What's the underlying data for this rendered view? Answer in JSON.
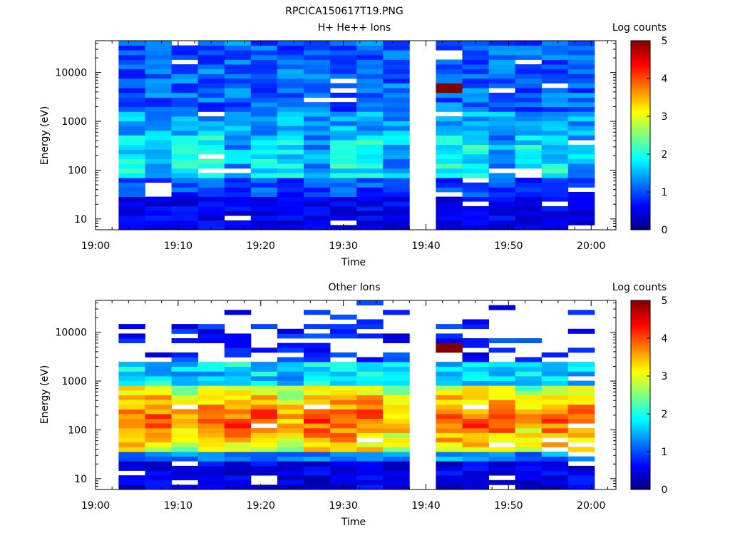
{
  "page_title": "RPCICA150617T19.PNG",
  "chart_data": [
    {
      "type": "heatmap",
      "title": "H+ He++ Ions",
      "xlabel": "Time",
      "ylabel": "Energy (eV)",
      "colorbar_label": "Log counts",
      "colorbar_ticks": [
        "0",
        "1",
        "2",
        "3",
        "4",
        "5"
      ],
      "colorbar_range": [
        0,
        5
      ],
      "colormap": "rainbow-jet",
      "x_range_min": [
        0,
        63
      ],
      "x_ticks": [
        {
          "min": 0,
          "label": "19:00"
        },
        {
          "min": 10,
          "label": "19:10"
        },
        {
          "min": 20,
          "label": "19:20"
        },
        {
          "min": 30,
          "label": "19:30"
        },
        {
          "min": 40,
          "label": "19:40"
        },
        {
          "min": 50,
          "label": "19:50"
        },
        {
          "min": 60,
          "label": "20:00"
        }
      ],
      "y_scale": "log",
      "y_range": [
        6,
        45000
      ],
      "y_ticks": [
        {
          "value": 10,
          "label": "10"
        },
        {
          "value": 100,
          "label": "100"
        },
        {
          "value": 1000,
          "label": "1000"
        },
        {
          "value": 10000,
          "label": "10000"
        }
      ],
      "time_bins_min": [
        [
          2.8,
          6.0
        ],
        [
          6.0,
          9.2
        ],
        [
          9.2,
          12.4
        ],
        [
          12.4,
          15.6
        ],
        [
          15.6,
          18.8
        ],
        [
          18.8,
          22.0
        ],
        [
          22.0,
          25.2
        ],
        [
          25.2,
          28.4
        ],
        [
          28.4,
          31.6
        ],
        [
          31.6,
          34.8
        ],
        [
          34.8,
          38.0
        ],
        [
          41.2,
          44.4
        ],
        [
          44.4,
          47.6
        ],
        [
          47.6,
          50.8
        ],
        [
          50.8,
          54.0
        ],
        [
          54.0,
          57.2
        ],
        [
          57.2,
          60.4
        ]
      ],
      "energy_range_eV": [
        6,
        45000
      ],
      "energy_bin_count": 40,
      "features": "Mostly 0.7-1.5 log counts above 1 keV; enhanced 2-2.5 near 100-400 eV; low <0.5 below 30 eV; isolated saturated (5) cell near 19:43 at ~5 keV; data gap 19:38-19:41."
    },
    {
      "type": "heatmap",
      "title": "Other Ions",
      "xlabel": "Time",
      "ylabel": "Energy (eV)",
      "colorbar_label": "Log counts",
      "colorbar_ticks": [
        "0",
        "1",
        "2",
        "3",
        "4",
        "5"
      ],
      "colorbar_range": [
        0,
        5
      ],
      "colormap": "rainbow-jet",
      "x_range_min": [
        0,
        63
      ],
      "x_ticks": [
        {
          "min": 0,
          "label": "19:00"
        },
        {
          "min": 10,
          "label": "19:10"
        },
        {
          "min": 20,
          "label": "19:20"
        },
        {
          "min": 30,
          "label": "19:30"
        },
        {
          "min": 40,
          "label": "19:40"
        },
        {
          "min": 50,
          "label": "19:50"
        },
        {
          "min": 60,
          "label": "20:00"
        }
      ],
      "y_scale": "log",
      "y_range": [
        6,
        45000
      ],
      "y_ticks": [
        {
          "value": 10,
          "label": "10"
        },
        {
          "value": 100,
          "label": "100"
        },
        {
          "value": 1000,
          "label": "1000"
        },
        {
          "value": 10000,
          "label": "10000"
        }
      ],
      "time_bins_min": [
        [
          2.8,
          6.0
        ],
        [
          6.0,
          9.2
        ],
        [
          9.2,
          12.4
        ],
        [
          12.4,
          15.6
        ],
        [
          15.6,
          18.8
        ],
        [
          18.8,
          22.0
        ],
        [
          22.0,
          25.2
        ],
        [
          25.2,
          28.4
        ],
        [
          28.4,
          31.6
        ],
        [
          31.6,
          34.8
        ],
        [
          34.8,
          38.0
        ],
        [
          41.2,
          44.4
        ],
        [
          44.4,
          47.6
        ],
        [
          47.6,
          50.8
        ],
        [
          50.8,
          54.0
        ],
        [
          54.0,
          57.2
        ],
        [
          57.2,
          60.4
        ]
      ],
      "energy_range_eV": [
        6,
        45000
      ],
      "energy_bin_count": 40,
      "features": "Intense band 3-4.2 log counts between ~50 and 700 eV, peak ~150 eV; sparse low-count streaks above 3 keV with many empty bins; isolated saturated (5) cell near 19:43 at ~4.5 keV; data gap 19:38-19:41."
    }
  ]
}
